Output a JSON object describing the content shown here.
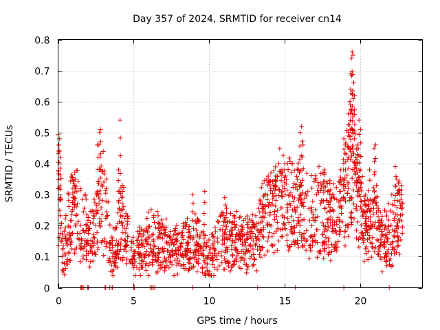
{
  "chart_data": {
    "type": "scatter",
    "title": "Day 357 of 2024, SRMTID for receiver cn14",
    "xlabel": "GPS time / hours",
    "ylabel": "SRMTID / TECUs",
    "xlim": [
      0,
      24.1
    ],
    "ylim": [
      0,
      0.8
    ],
    "xticks": [
      0,
      5,
      10,
      15,
      20
    ],
    "yticks": [
      0,
      0.1,
      0.2,
      0.3,
      0.4,
      0.5,
      0.6,
      0.7,
      0.8
    ],
    "grid": true,
    "marker": "plus",
    "color": "#e00000",
    "trend": [
      [
        0.0,
        0.33
      ],
      [
        0.3,
        0.1
      ],
      [
        0.7,
        0.2
      ],
      [
        1.0,
        0.26
      ],
      [
        1.5,
        0.2
      ],
      [
        2.0,
        0.16
      ],
      [
        2.5,
        0.2
      ],
      [
        2.9,
        0.3
      ],
      [
        3.3,
        0.18
      ],
      [
        3.7,
        0.1
      ],
      [
        4.2,
        0.22
      ],
      [
        4.6,
        0.16
      ],
      [
        5.0,
        0.1
      ],
      [
        5.6,
        0.13
      ],
      [
        6.1,
        0.15
      ],
      [
        6.6,
        0.14
      ],
      [
        7.2,
        0.14
      ],
      [
        7.8,
        0.12
      ],
      [
        8.3,
        0.13
      ],
      [
        8.8,
        0.13
      ],
      [
        9.2,
        0.15
      ],
      [
        9.6,
        0.1
      ],
      [
        10.0,
        0.09
      ],
      [
        10.5,
        0.12
      ],
      [
        11.0,
        0.18
      ],
      [
        11.5,
        0.15
      ],
      [
        12.0,
        0.14
      ],
      [
        12.5,
        0.14
      ],
      [
        13.0,
        0.15
      ],
      [
        13.5,
        0.22
      ],
      [
        14.0,
        0.25
      ],
      [
        14.5,
        0.27
      ],
      [
        15.0,
        0.28
      ],
      [
        15.5,
        0.27
      ],
      [
        16.0,
        0.24
      ],
      [
        16.5,
        0.22
      ],
      [
        17.0,
        0.24
      ],
      [
        17.5,
        0.25
      ],
      [
        18.0,
        0.22
      ],
      [
        18.5,
        0.2
      ],
      [
        19.0,
        0.3
      ],
      [
        19.4,
        0.4
      ],
      [
        19.8,
        0.28
      ],
      [
        20.2,
        0.22
      ],
      [
        20.6,
        0.18
      ],
      [
        21.0,
        0.2
      ],
      [
        21.5,
        0.14
      ],
      [
        22.0,
        0.18
      ],
      [
        22.5,
        0.22
      ],
      [
        22.8,
        0.25
      ]
    ],
    "peaks": [
      [
        0.05,
        0.46
      ],
      [
        0.1,
        0.48
      ],
      [
        0.15,
        0.42
      ],
      [
        1.0,
        0.35
      ],
      [
        1.1,
        0.37
      ],
      [
        2.6,
        0.46
      ],
      [
        2.75,
        0.5
      ],
      [
        2.8,
        0.51
      ],
      [
        4.1,
        0.54
      ],
      [
        4.0,
        0.38
      ],
      [
        4.25,
        0.33
      ],
      [
        8.9,
        0.3
      ],
      [
        9.7,
        0.31
      ],
      [
        14.4,
        0.36
      ],
      [
        14.8,
        0.38
      ],
      [
        15.0,
        0.4
      ],
      [
        16.0,
        0.5
      ],
      [
        16.1,
        0.52
      ],
      [
        16.2,
        0.46
      ],
      [
        18.7,
        0.38
      ],
      [
        18.9,
        0.48
      ],
      [
        19.0,
        0.46
      ],
      [
        19.2,
        0.56
      ],
      [
        19.3,
        0.6
      ],
      [
        19.35,
        0.69
      ],
      [
        19.4,
        0.74
      ],
      [
        19.45,
        0.76
      ],
      [
        19.5,
        0.75
      ],
      [
        19.55,
        0.66
      ],
      [
        19.6,
        0.62
      ],
      [
        19.8,
        0.46
      ],
      [
        19.9,
        0.54
      ],
      [
        20.0,
        0.51
      ],
      [
        19.7,
        0.42
      ],
      [
        20.9,
        0.45
      ],
      [
        21.0,
        0.46
      ],
      [
        20.6,
        0.38
      ],
      [
        22.3,
        0.39
      ],
      [
        22.4,
        0.35
      ],
      [
        22.7,
        0.33
      ]
    ],
    "zero_points": [
      1.5,
      1.55,
      1.6,
      1.7,
      1.95,
      2.0,
      3.1,
      3.15,
      3.4,
      3.5,
      3.6,
      5.0,
      5.05,
      6.1,
      6.2,
      6.3,
      6.4,
      8.9,
      13.2,
      15.7,
      18.9,
      21.9
    ]
  }
}
